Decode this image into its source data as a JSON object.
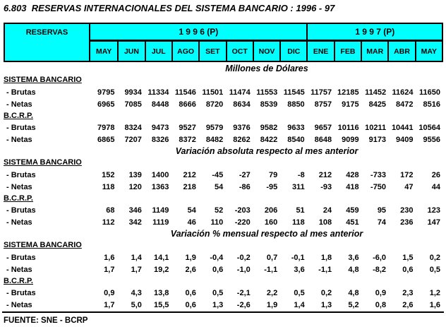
{
  "title": "6.803  RESERVAS INTERNACIONALES DEL SISTEMA BANCARIO : 1996 - 97",
  "colors": {
    "header_bg": "#00FFFF",
    "border": "#000000",
    "text": "#000000"
  },
  "header": {
    "reservas_label": "RESERVAS",
    "year_groups": [
      {
        "label": "1 9 9 6 (P)",
        "span": 8
      },
      {
        "label": "1 9 9 7 (P)",
        "span": 5
      }
    ],
    "months": [
      "MAY",
      "JUN",
      "JUL",
      "AGO",
      "SET",
      "OCT",
      "NOV",
      "DIC",
      "ENE",
      "FEB",
      "MAR",
      "ABR",
      "MAY"
    ]
  },
  "sections": [
    {
      "heading": "Millones de Dólares",
      "groups": [
        {
          "name": "SISTEMA BANCARIO",
          "rows": [
            {
              "label": "- Brutas",
              "values": [
                "9795",
                "9934",
                "11334",
                "11546",
                "11501",
                "11474",
                "11553",
                "11545",
                "11757",
                "12185",
                "11452",
                "11624",
                "11650"
              ]
            },
            {
              "label": "- Netas",
              "values": [
                "6965",
                "7085",
                "8448",
                "8666",
                "8720",
                "8634",
                "8539",
                "8850",
                "8757",
                "9175",
                "8425",
                "8472",
                "8516"
              ]
            }
          ]
        },
        {
          "name": "B.C.R.P.",
          "rows": [
            {
              "label": "- Brutas",
              "values": [
                "7978",
                "8324",
                "9473",
                "9527",
                "9579",
                "9376",
                "9582",
                "9633",
                "9657",
                "10116",
                "10211",
                "10441",
                "10564"
              ]
            },
            {
              "label": "- Netas",
              "values": [
                "6865",
                "7207",
                "8326",
                "8372",
                "8482",
                "8262",
                "8422",
                "8540",
                "8648",
                "9099",
                "9173",
                "9409",
                "9556"
              ]
            }
          ]
        }
      ]
    },
    {
      "heading": "Variación absoluta respecto al mes anterior",
      "groups": [
        {
          "name": "SISTEMA BANCARIO",
          "rows": [
            {
              "label": "- Brutas",
              "values": [
                "152",
                "139",
                "1400",
                "212",
                "-45",
                "-27",
                "79",
                "-8",
                "212",
                "428",
                "-733",
                "172",
                "26"
              ]
            },
            {
              "label": "- Netas",
              "values": [
                "118",
                "120",
                "1363",
                "218",
                "54",
                "-86",
                "-95",
                "311",
                "-93",
                "418",
                "-750",
                "47",
                "44"
              ]
            }
          ]
        },
        {
          "name": "B.C.R.P.",
          "rows": [
            {
              "label": "- Brutas",
              "values": [
                "68",
                "346",
                "1149",
                "54",
                "52",
                "-203",
                "206",
                "51",
                "24",
                "459",
                "95",
                "230",
                "123"
              ]
            },
            {
              "label": "- Netas",
              "values": [
                "112",
                "342",
                "1119",
                "46",
                "110",
                "-220",
                "160",
                "118",
                "108",
                "451",
                "74",
                "236",
                "147"
              ]
            }
          ]
        }
      ]
    },
    {
      "heading": "Variación % mensual respecto al mes anterior",
      "groups": [
        {
          "name": "SISTEMA BANCARIO",
          "rows": [
            {
              "label": "- Brutas",
              "values": [
                "1,6",
                "1,4",
                "14,1",
                "1,9",
                "-0,4",
                "-0,2",
                "0,7",
                "-0,1",
                "1,8",
                "3,6",
                "-6,0",
                "1,5",
                "0,2"
              ]
            },
            {
              "label": "- Netas",
              "values": [
                "1,7",
                "1,7",
                "19,2",
                "2,6",
                "0,6",
                "-1,0",
                "-1,1",
                "3,6",
                "-1,1",
                "4,8",
                "-8,2",
                "0,6",
                "0,5"
              ]
            }
          ]
        },
        {
          "name": "B.C.R.P.",
          "rows": [
            {
              "label": "- Brutas",
              "values": [
                "0,9",
                "4,3",
                "13,8",
                "0,6",
                "0,5",
                "-2,1",
                "2,2",
                "0,5",
                "0,2",
                "4,8",
                "0,9",
                "2,3",
                "1,2"
              ]
            },
            {
              "label": "- Netas",
              "values": [
                "1,7",
                "5,0",
                "15,5",
                "0,6",
                "1,3",
                "-2,6",
                "1,9",
                "1,4",
                "1,3",
                "5,2",
                "0,8",
                "2,6",
                "1,6"
              ]
            }
          ]
        }
      ]
    }
  ],
  "footer": {
    "source": "FUENTE: SNE - BCRP"
  }
}
